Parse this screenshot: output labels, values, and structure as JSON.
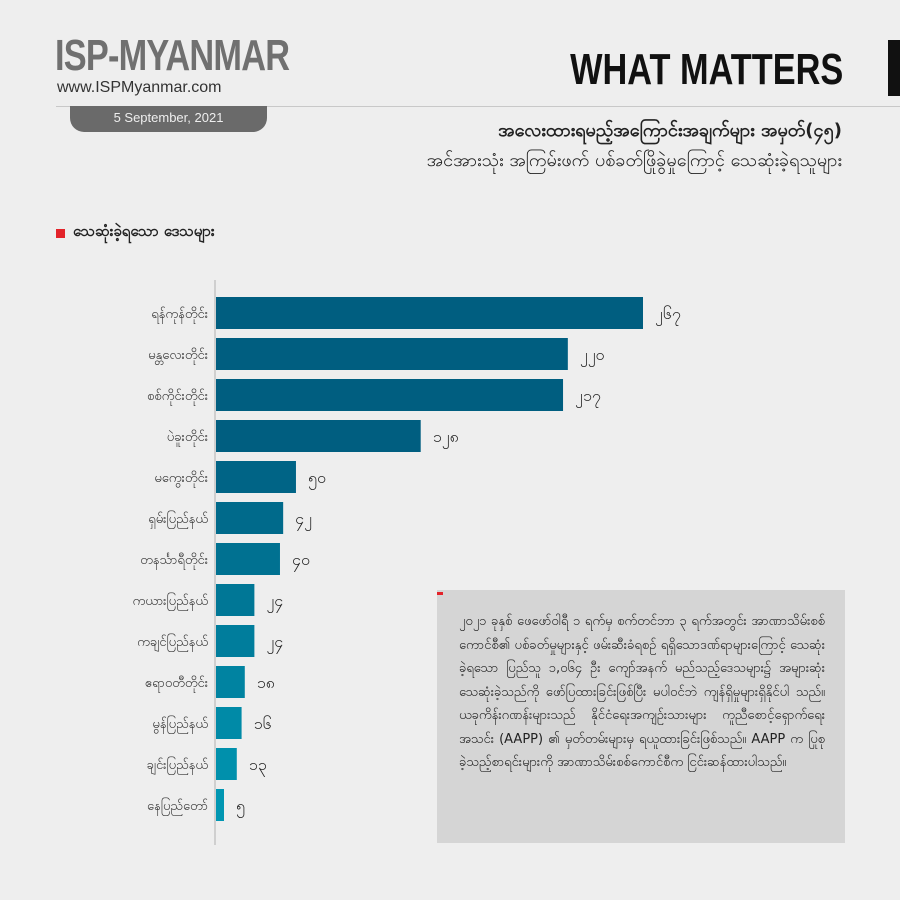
{
  "header": {
    "brand": "ISP-MYANMAR",
    "url": "www.ISPMyanmar.com",
    "date": "5 September, 2021",
    "series_title": "WHAT MATTERS",
    "title": "အလေးထားရမည့်အကြောင်းအချက်များ အမှတ်(၄၅)",
    "subtitle": "အင်အားသုံး အကြမ်းဖက် ပစ်ခတ်ဖြိုခွဲမှုကြောင့် သေဆုံးခဲ့ရသူများ"
  },
  "note": {
    "text": "၂၀၂၁ ခုနှစ် ဖေဖော်ဝါရီ ၁ ရက်မှ စက်တင်ဘာ ၃ ရက်အတွင်း အာဏာသိမ်းစစ်ကောင်စီ၏ ပစ်ခတ်မှုများနှင့် ဖမ်းဆီးခံရစဉ် ရရှိသောဒဏ်ရာများကြောင့် သေဆုံးခဲ့ရသော ပြည်သူ ၁,၀၆၄ ဦး ကျော်အနက် မည်သည့်ဒေသများ၌ အများဆုံး သေဆုံးခဲ့သည်ကို ဖော်ပြထားခြင်းဖြစ်ပြီး မပါဝင်ဘဲ ကျန်ရှိမှုများရှိနိုင်ပါ သည်။ ယခုကိန်းဂဏန်းများသည် နိုင်ငံရေးအကျဉ်းသားများ ကူညီစောင့်ရှောက်ရေးအသင်း (AAPP) ၏ မှတ်တမ်းများမှ ရယူထားခြင်းဖြစ်သည်။ AAPP က ပြုစုခဲ့သည့်စာရင်းများကို အာဏာသိမ်းစစ်ကောင်စီက ငြင်းဆန်ထားပါသည်။"
  },
  "chart_data": {
    "type": "bar",
    "orientation": "horizontal",
    "legend": "သေဆုံးခဲ့ရသော ဒေသများ",
    "categories": [
      "ရန်ကုန်တိုင်း",
      "မန္တလေးတိုင်း",
      "စစ်ကိုင်းတိုင်း",
      "ပဲခူးတိုင်း",
      "မကွေးတိုင်း",
      "ရှမ်းပြည်နယ်",
      "တနင်္သာရီတိုင်း",
      "ကယားပြည်နယ်",
      "ကချင်ပြည်နယ်",
      "ဧရာဝတီတိုင်း",
      "မွန်ပြည်နယ်",
      "ချင်းပြည်နယ်",
      "နေပြည်တော်"
    ],
    "values": [
      267,
      220,
      217,
      128,
      50,
      42,
      40,
      24,
      24,
      18,
      16,
      13,
      5
    ],
    "value_labels": [
      "၂၆၇",
      "၂၂၀",
      "၂၁၇",
      "၁၂၈",
      "၅၀",
      "၄၂",
      "၄၀",
      "၂၄",
      "၂၄",
      "၁၈",
      "၁၆",
      "၁၃",
      "၅"
    ],
    "xlim": [
      0,
      267
    ],
    "colors": {
      "dark": "#005e80",
      "light": "#0096b2"
    }
  }
}
